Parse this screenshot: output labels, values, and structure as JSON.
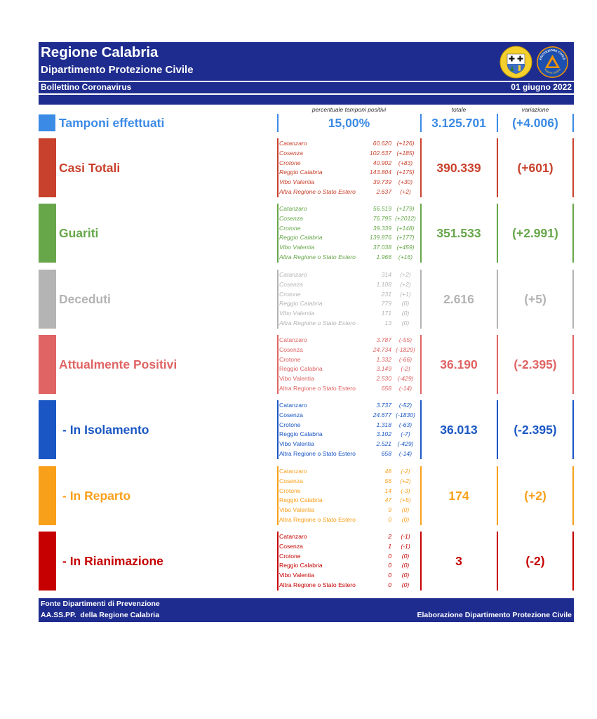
{
  "header": {
    "title": "Regione Calabria",
    "subtitle": "Dipartimento Protezione Civile",
    "bulletin": "Bollettino Coronavirus",
    "date": "01 giugno 2022"
  },
  "logos": {
    "protezione_civile_top": "PROTEZIONE CIVILE",
    "protezione_civile_bottom": "Regione Calabria"
  },
  "colors": {
    "brand_navy": "#1f2c8f"
  },
  "columns": {
    "percent": "percentuale tamponi positivi",
    "total": "totale",
    "change": "variazione"
  },
  "tamponi": {
    "label": "Tamponi effettuati",
    "percent": "15,00%",
    "total": "3.125.701",
    "change": "(+4.006)",
    "color": "#3b8ae6"
  },
  "sections": [
    {
      "label": "Casi Totali",
      "color": "#c8412c",
      "total": "390.339",
      "change": "(+601)",
      "regions": [
        {
          "name": "Catanzaro",
          "value": "60.620",
          "change": "(+126)"
        },
        {
          "name": "Cosenza",
          "value": "102.637",
          "change": "(+185)"
        },
        {
          "name": "Crotone",
          "value": "40.902",
          "change": "(+83)"
        },
        {
          "name": "Reggio Calabria",
          "value": "143.804",
          "change": "(+175)"
        },
        {
          "name": "Vibo Valentia",
          "value": "39.739",
          "change": "(+30)"
        },
        {
          "name": "Altra Regione o Stato Estero",
          "value": "2.637",
          "change": "(+2)"
        }
      ]
    },
    {
      "label": "Guariti",
      "color": "#67a74a",
      "total": "351.533",
      "change": "(+2.991)",
      "regions": [
        {
          "name": "Catanzaro",
          "value": "56.519",
          "change": "(+179)"
        },
        {
          "name": "Cosenza",
          "value": "76.795",
          "change": "(+2012)"
        },
        {
          "name": "Crotone",
          "value": "39.339",
          "change": "(+148)"
        },
        {
          "name": "Reggio Calabria",
          "value": "139.876",
          "change": "(+177)"
        },
        {
          "name": "Vibo Valentia",
          "value": "37.038",
          "change": "(+459)"
        },
        {
          "name": "Altra Regione o Stato Estero",
          "value": "1.966",
          "change": "(+16)"
        }
      ]
    },
    {
      "label": "Deceduti",
      "color": "#b4b4b4",
      "total": "2.616",
      "change": "(+5)",
      "regions": [
        {
          "name": "Catanzaro",
          "value": "314",
          "change": "(+2)"
        },
        {
          "name": "Cosenza",
          "value": "1.108",
          "change": "(+2)"
        },
        {
          "name": "Crotone",
          "value": "231",
          "change": "(+1)"
        },
        {
          "name": "Reggio Calabria",
          "value": "779",
          "change": "(0)"
        },
        {
          "name": "Vibo Valentia",
          "value": "171",
          "change": "(0)"
        },
        {
          "name": "Altra Regione o Stato Estero",
          "value": "13",
          "change": "(0)"
        }
      ]
    },
    {
      "label": "Attualmente Positivi",
      "color": "#e06464",
      "total": "36.190",
      "change": "(-2.395)",
      "regions": [
        {
          "name": "Catanzaro",
          "value": "3.787",
          "change": "(-55)"
        },
        {
          "name": "Cosenza",
          "value": "24.734",
          "change": "(-1829)"
        },
        {
          "name": "Crotone",
          "value": "1.332",
          "change": "(-66)"
        },
        {
          "name": "Reggio Calabria",
          "value": "3.149",
          "change": "(-2)"
        },
        {
          "name": "Vibo Valentia",
          "value": "2.530",
          "change": "(-429)"
        },
        {
          "name": "Altra Regione o Stato Estero",
          "value": "658",
          "change": "(-14)"
        }
      ]
    },
    {
      "label": "- In Isolamento",
      "color": "#1a57c4",
      "total": "36.013",
      "change": "(-2.395)",
      "regions": [
        {
          "name": "Catanzaro",
          "value": "3.737",
          "change": "(-52)"
        },
        {
          "name": "Cosenza",
          "value": "24.677",
          "change": "(-1830)"
        },
        {
          "name": "Crotone",
          "value": "1.318",
          "change": "(-63)"
        },
        {
          "name": "Reggio Calabria",
          "value": "3.102",
          "change": "(-7)"
        },
        {
          "name": "Vibo Valentia",
          "value": "2.521",
          "change": "(-429)"
        },
        {
          "name": "Altra Regione o Stato Estero",
          "value": "658",
          "change": "(-14)"
        }
      ]
    },
    {
      "label": "- In Reparto",
      "color": "#f9a01b",
      "total": "174",
      "change": "(+2)",
      "regions": [
        {
          "name": "Catanzaro",
          "value": "48",
          "change": "(-2)"
        },
        {
          "name": "Cosenza",
          "value": "56",
          "change": "(+2)"
        },
        {
          "name": "Crotone",
          "value": "14",
          "change": "(-3)"
        },
        {
          "name": "Reggio Calabria",
          "value": "47",
          "change": "(+5)"
        },
        {
          "name": "Vibo Valentia",
          "value": "9",
          "change": "(0)"
        },
        {
          "name": "Altra Regione o Stato Estero",
          "value": "0",
          "change": "(0)"
        }
      ]
    },
    {
      "label": "- In Rianimazione",
      "color": "#c60000",
      "total": "3",
      "change": "(-2)",
      "regions": [
        {
          "name": "Catanzaro",
          "value": "2",
          "change": "(-1)"
        },
        {
          "name": "Cosenza",
          "value": "1",
          "change": "(-1)"
        },
        {
          "name": "Crotone",
          "value": "0",
          "change": "(0)"
        },
        {
          "name": "Reggio Calabria",
          "value": "0",
          "change": "(0)"
        },
        {
          "name": "Vibo Valentia",
          "value": "0",
          "change": "(0)"
        },
        {
          "name": "Altra Regione o Stato Estero",
          "value": "0",
          "change": "(0)"
        }
      ]
    }
  ],
  "footer": {
    "source_line1": "Fonte Dipartimenti di Prevenzione",
    "source_line2": "AA.SS.PP.  della Regione Calabria",
    "credit": "Elaborazione Dipartimento Protezione Civile"
  }
}
